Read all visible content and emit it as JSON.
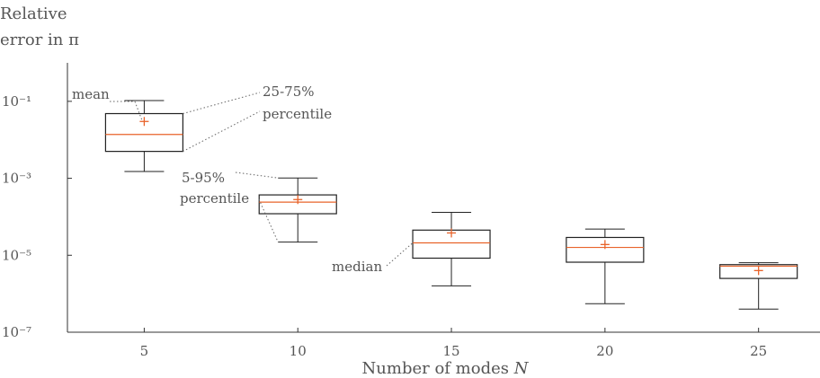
{
  "chart_data": {
    "type": "box",
    "title": "",
    "ylabel_lines": [
      "Relative",
      "error in π"
    ],
    "xlabel": "Number of modes N",
    "yscale": "log",
    "ylim_exp": [
      -7,
      0
    ],
    "xlim": [
      2.5,
      27
    ],
    "grid": false,
    "xticks": [
      5,
      10,
      15,
      20,
      25
    ],
    "xtick_labels": [
      "5",
      "10",
      "15",
      "20",
      "25"
    ],
    "yticks_exp": [
      -1,
      -3,
      -5,
      -7
    ],
    "ytick_labels": [
      "10⁻¹",
      "10⁻³",
      "10⁻⁵",
      "10⁻⁷"
    ],
    "box_color": "#222222",
    "median_color": "#e8632a",
    "mean_color": "#e8632a",
    "boxes": [
      {
        "x": 5,
        "p5": 0.0015,
        "p25": 0.005,
        "median": 0.0138,
        "p75": 0.048,
        "p95": 0.105,
        "mean": 0.03
      },
      {
        "x": 10,
        "p5": 2.2e-05,
        "p25": 0.00012,
        "median": 0.00024,
        "p75": 0.00037,
        "p95": 0.00102,
        "mean": 0.00028
      },
      {
        "x": 15,
        "p5": 1.6e-06,
        "p25": 8.4e-06,
        "median": 2.1e-05,
        "p75": 4.5e-05,
        "p95": 0.00013,
        "mean": 3.8e-05
      },
      {
        "x": 20,
        "p5": 5.5e-07,
        "p25": 6.6e-06,
        "median": 1.6e-05,
        "p75": 2.9e-05,
        "p95": 4.8e-05,
        "mean": 1.9e-05
      },
      {
        "x": 25,
        "p5": 4e-07,
        "p25": 2.5e-06,
        "median": 5.2e-06,
        "p75": 5.7e-06,
        "p95": 6.4e-06,
        "mean": 4e-06
      }
    ],
    "annotations": {
      "mean": "mean",
      "iqr": [
        "25-75%",
        "percentile"
      ],
      "whisker": [
        "5-95%",
        "percentile"
      ],
      "median": "median"
    }
  }
}
